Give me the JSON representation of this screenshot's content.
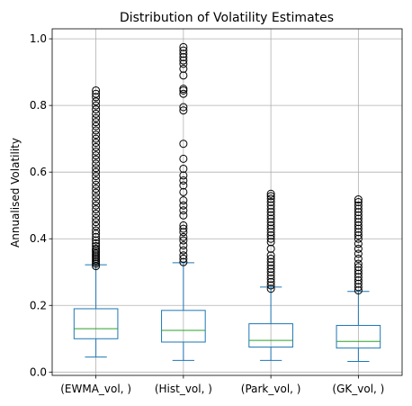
{
  "chart_data": {
    "type": "box",
    "title": "Distribution of Volatility Estimates",
    "xlabel": "",
    "ylabel": "Annualised Volatility",
    "ylim": [
      -0.01,
      1.03
    ],
    "yticks": [
      0.0,
      0.2,
      0.4,
      0.6,
      0.8,
      1.0
    ],
    "ytick_labels": [
      "0.0",
      "0.2",
      "0.4",
      "0.6",
      "0.8",
      "1.0"
    ],
    "grid": true,
    "colors": {
      "box": "#1f77b4",
      "median": "#2ca02c",
      "flier": "#000000",
      "grid": "#b0b0b0"
    },
    "categories": [
      "(EWMA_vol, )",
      "(Hist_vol, )",
      "(Park_vol, )",
      "(GK_vol, )"
    ],
    "boxes": [
      {
        "name": "(EWMA_vol, )",
        "whisker_low": 0.045,
        "q1": 0.1,
        "median": 0.13,
        "q3": 0.19,
        "whisker_high": 0.322,
        "fliers": [
          0.318,
          0.325,
          0.33,
          0.335,
          0.34,
          0.345,
          0.35,
          0.355,
          0.36,
          0.365,
          0.37,
          0.378,
          0.386,
          0.395,
          0.405,
          0.415,
          0.425,
          0.438,
          0.45,
          0.462,
          0.475,
          0.488,
          0.5,
          0.512,
          0.525,
          0.538,
          0.55,
          0.562,
          0.575,
          0.588,
          0.6,
          0.612,
          0.625,
          0.638,
          0.65,
          0.662,
          0.675,
          0.688,
          0.7,
          0.712,
          0.725,
          0.738,
          0.75,
          0.762,
          0.775,
          0.788,
          0.8,
          0.812,
          0.825,
          0.835,
          0.845
        ]
      },
      {
        "name": "(Hist_vol, )",
        "whisker_low": 0.035,
        "q1": 0.09,
        "median": 0.125,
        "q3": 0.185,
        "whisker_high": 0.328,
        "fliers": [
          0.33,
          0.34,
          0.35,
          0.365,
          0.38,
          0.395,
          0.405,
          0.42,
          0.43,
          0.44,
          0.47,
          0.485,
          0.5,
          0.515,
          0.54,
          0.56,
          0.575,
          0.59,
          0.61,
          0.64,
          0.685,
          0.785,
          0.795,
          0.835,
          0.845,
          0.85,
          0.89,
          0.91,
          0.925,
          0.935,
          0.945,
          0.955,
          0.965,
          0.975
        ]
      },
      {
        "name": "(Park_vol, )",
        "whisker_low": 0.035,
        "q1": 0.075,
        "median": 0.095,
        "q3": 0.145,
        "whisker_high": 0.255,
        "fliers": [
          0.25,
          0.26,
          0.27,
          0.28,
          0.29,
          0.3,
          0.31,
          0.32,
          0.33,
          0.34,
          0.35,
          0.37,
          0.39,
          0.4,
          0.41,
          0.42,
          0.43,
          0.44,
          0.45,
          0.46,
          0.47,
          0.48,
          0.49,
          0.5,
          0.51,
          0.52,
          0.528,
          0.535
        ]
      },
      {
        "name": "(GK_vol, )",
        "whisker_low": 0.032,
        "q1": 0.072,
        "median": 0.092,
        "q3": 0.14,
        "whisker_high": 0.242,
        "fliers": [
          0.245,
          0.255,
          0.265,
          0.275,
          0.285,
          0.295,
          0.305,
          0.315,
          0.325,
          0.34,
          0.355,
          0.37,
          0.385,
          0.4,
          0.41,
          0.42,
          0.43,
          0.44,
          0.45,
          0.46,
          0.47,
          0.48,
          0.49,
          0.5,
          0.51,
          0.518
        ]
      }
    ]
  }
}
